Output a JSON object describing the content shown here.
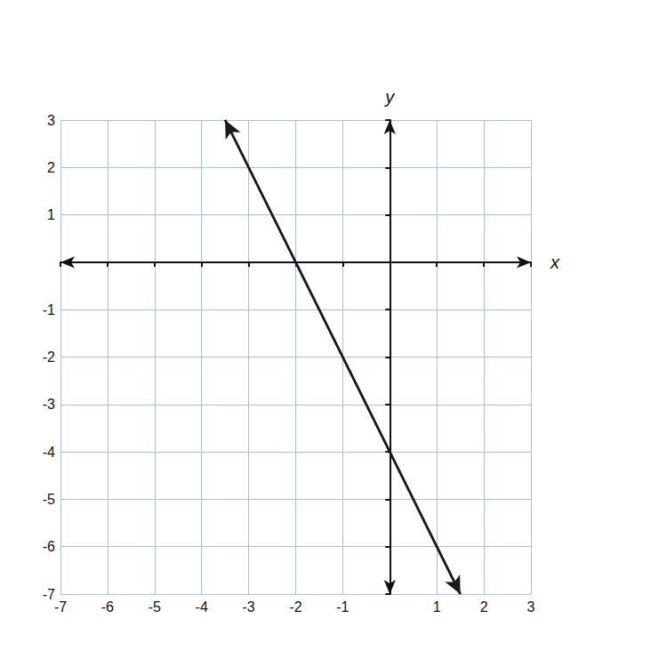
{
  "chart_data": {
    "type": "line",
    "x": [
      -3.5,
      1.5
    ],
    "values": [
      3,
      -7
    ],
    "color": "#1a1a1a",
    "marker": "arrow",
    "x_label": "x",
    "y_label": "y",
    "xlim": [
      -7,
      3
    ],
    "xticks": [
      -7,
      -6,
      -5,
      -4,
      -3,
      -2,
      -1,
      1,
      2,
      3
    ],
    "ylim": [
      -7,
      3
    ],
    "yticks": [
      -7,
      -6,
      -5,
      -4,
      -3,
      -2,
      -1,
      1,
      2,
      3
    ],
    "grid": true
  }
}
